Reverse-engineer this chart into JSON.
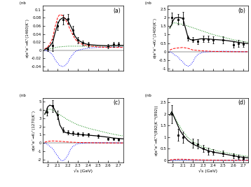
{
  "xlim": [
    1.95,
    2.75
  ],
  "xticks": [
    2.0,
    2.1,
    2.2,
    2.3,
    2.4,
    2.5,
    2.6,
    2.7
  ],
  "xticklabels": [
    "2",
    "2.1",
    "2.2",
    "2.3",
    "2.4",
    "2.5",
    "2.6",
    "2.7"
  ],
  "xlabel": "√s (GeV)",
  "panels": [
    {
      "label": "(a)",
      "ylabel_top": " (nb",
      "ylabel_rot": "σ(e⁺e⁻→K⁺(1460)K⁻)",
      "ylim": [
        -0.05,
        0.11
      ],
      "yticks": [
        -0.04,
        -0.02,
        0.0,
        0.02,
        0.04,
        0.06,
        0.08,
        0.1
      ],
      "yticklabels": [
        "-0.04",
        "-0.02",
        "0",
        "0.02",
        "0.04",
        "0.06",
        "0.08",
        "0.1"
      ],
      "data_x": [
        2.0,
        2.05,
        2.1,
        2.15,
        2.2,
        2.25,
        2.3,
        2.35,
        2.4,
        2.6,
        2.65,
        2.7
      ],
      "data_y": [
        0.003,
        0.012,
        0.06,
        0.075,
        0.077,
        0.05,
        0.025,
        0.018,
        0.015,
        0.01,
        0.015,
        0.015
      ],
      "data_yerr": [
        0.005,
        0.015,
        0.01,
        0.012,
        0.012,
        0.01,
        0.008,
        0.006,
        0.006,
        0.005,
        0.006,
        0.005
      ],
      "black_x": [
        1.97,
        2.0,
        2.02,
        2.05,
        2.07,
        2.1,
        2.12,
        2.15,
        2.17,
        2.2,
        2.22,
        2.25,
        2.27,
        2.3,
        2.35,
        2.4,
        2.5,
        2.6,
        2.65,
        2.7,
        2.75
      ],
      "black_y": [
        0.002,
        0.005,
        0.01,
        0.02,
        0.04,
        0.065,
        0.075,
        0.08,
        0.079,
        0.073,
        0.063,
        0.048,
        0.035,
        0.025,
        0.018,
        0.014,
        0.012,
        0.011,
        0.012,
        0.012,
        0.012
      ],
      "red_x": [
        1.97,
        2.0,
        2.02,
        2.05,
        2.07,
        2.1,
        2.12,
        2.15,
        2.17,
        2.2,
        2.22,
        2.25,
        2.27,
        2.3,
        2.35,
        2.4,
        2.5,
        2.6,
        2.65,
        2.7,
        2.75
      ],
      "red_y": [
        0.003,
        0.008,
        0.015,
        0.03,
        0.055,
        0.082,
        0.088,
        0.085,
        0.078,
        0.065,
        0.052,
        0.038,
        0.028,
        0.02,
        0.014,
        0.011,
        0.008,
        0.007,
        0.007,
        0.007,
        0.007
      ],
      "green_x": [
        1.97,
        2.0,
        2.05,
        2.1,
        2.15,
        2.2,
        2.25,
        2.3,
        2.4,
        2.5,
        2.6,
        2.7,
        2.75
      ],
      "green_y": [
        0.002,
        0.003,
        0.005,
        0.008,
        0.009,
        0.01,
        0.01,
        0.01,
        0.01,
        0.01,
        0.01,
        0.01,
        0.01
      ],
      "blue_x": [
        1.97,
        2.0,
        2.02,
        2.05,
        2.07,
        2.1,
        2.12,
        2.15,
        2.17,
        2.2,
        2.22,
        2.25,
        2.27,
        2.3,
        2.35,
        2.4,
        2.5,
        2.6,
        2.7,
        2.75
      ],
      "blue_y": [
        0.0,
        -0.002,
        -0.005,
        -0.012,
        -0.022,
        -0.032,
        -0.038,
        -0.04,
        -0.038,
        -0.03,
        -0.02,
        -0.01,
        -0.004,
        0.0,
        0.003,
        0.005,
        0.007,
        0.008,
        0.008,
        0.008
      ]
    },
    {
      "label": "(b)",
      "ylabel_top": " (nb",
      "ylabel_rot": "σ(e⁺e⁻→K₁⁺(1400)K⁻)",
      "ylim": [
        -1.1,
        2.7
      ],
      "yticks": [
        -1.0,
        -0.5,
        0.0,
        0.5,
        1.0,
        1.5,
        2.0,
        2.5
      ],
      "yticklabels": [
        "-1",
        "-0.5",
        "0",
        "0.5",
        "1",
        "1.5",
        "2",
        "2.5"
      ],
      "data_x": [
        1.99,
        2.05,
        2.1,
        2.15,
        2.2,
        2.25,
        2.3,
        2.35,
        2.4,
        2.5,
        2.6,
        2.65,
        2.7
      ],
      "data_y": [
        2.0,
        1.9,
        1.95,
        0.8,
        0.7,
        0.6,
        0.75,
        0.75,
        0.7,
        0.7,
        0.4,
        0.5,
        0.45
      ],
      "data_yerr": [
        0.3,
        0.3,
        0.4,
        0.15,
        0.15,
        0.15,
        0.2,
        0.2,
        0.2,
        0.2,
        0.15,
        0.2,
        0.15
      ],
      "black_x": [
        1.97,
        1.99,
        2.0,
        2.02,
        2.05,
        2.07,
        2.1,
        2.12,
        2.15,
        2.17,
        2.2,
        2.22,
        2.25,
        2.27,
        2.3,
        2.35,
        2.4,
        2.5,
        2.6,
        2.65,
        2.7,
        2.75
      ],
      "black_y": [
        1.4,
        1.6,
        1.8,
        1.98,
        2.0,
        2.0,
        1.95,
        1.5,
        0.85,
        0.72,
        0.68,
        0.7,
        0.72,
        0.75,
        0.76,
        0.75,
        0.72,
        0.68,
        0.6,
        0.55,
        0.5,
        0.48
      ],
      "red_x": [
        1.97,
        1.99,
        2.0,
        2.05,
        2.1,
        2.15,
        2.2,
        2.3,
        2.4,
        2.5,
        2.6,
        2.7,
        2.75
      ],
      "red_y": [
        0.1,
        0.15,
        0.18,
        0.22,
        0.25,
        0.2,
        0.1,
        0.05,
        0.02,
        0.01,
        0.0,
        0.0,
        0.0
      ],
      "green_x": [
        1.97,
        1.99,
        2.0,
        2.02,
        2.05,
        2.1,
        2.15,
        2.2,
        2.25,
        2.3,
        2.4,
        2.5,
        2.6,
        2.7,
        2.75
      ],
      "green_y": [
        1.35,
        1.55,
        1.65,
        1.7,
        1.65,
        1.6,
        1.5,
        1.4,
        1.3,
        1.2,
        1.0,
        0.85,
        0.7,
        0.6,
        0.55
      ],
      "blue_x": [
        1.97,
        1.99,
        2.0,
        2.02,
        2.05,
        2.07,
        2.1,
        2.12,
        2.15,
        2.17,
        2.2,
        2.22,
        2.25,
        2.3,
        2.4,
        2.5,
        2.6,
        2.7,
        2.75
      ],
      "blue_y": [
        0.0,
        -0.05,
        -0.1,
        -0.2,
        -0.3,
        -0.45,
        -0.6,
        -0.75,
        -0.85,
        -0.8,
        -0.6,
        -0.35,
        -0.15,
        -0.02,
        0.02,
        0.03,
        0.02,
        0.0,
        0.0
      ]
    },
    {
      "label": "(c)",
      "ylabel_top": " (nb",
      "ylabel_rot": "σ(e⁺e⁻→K₁⁺(1270)K⁻)",
      "ylim": [
        -2.4,
        5.5
      ],
      "yticks": [
        -2,
        -1,
        0,
        1,
        2,
        3,
        4,
        5
      ],
      "yticklabels": [
        "-2",
        "-1",
        "0",
        "1",
        "2",
        "3",
        "4",
        "5"
      ],
      "data_x": [
        1.99,
        2.05,
        2.1,
        2.15,
        2.2,
        2.25,
        2.3,
        2.35,
        2.4,
        2.5,
        2.6,
        2.65,
        2.7
      ],
      "data_y": [
        3.8,
        4.5,
        3.4,
        1.55,
        1.3,
        1.2,
        1.1,
        1.05,
        1.0,
        0.85,
        0.5,
        0.5,
        0.4
      ],
      "data_yerr": [
        0.5,
        0.7,
        0.5,
        0.3,
        0.25,
        0.25,
        0.2,
        0.2,
        0.2,
        0.2,
        0.15,
        0.15,
        0.15
      ],
      "black_x": [
        1.97,
        1.99,
        2.0,
        2.02,
        2.05,
        2.07,
        2.1,
        2.12,
        2.15,
        2.17,
        2.2,
        2.25,
        2.3,
        2.35,
        2.4,
        2.5,
        2.6,
        2.65,
        2.7,
        2.75
      ],
      "black_y": [
        3.5,
        4.0,
        4.4,
        4.6,
        4.5,
        4.0,
        3.3,
        2.2,
        1.55,
        1.3,
        1.2,
        1.1,
        1.05,
        1.0,
        0.95,
        0.85,
        0.7,
        0.6,
        0.55,
        0.5
      ],
      "red_x": [
        1.97,
        1.99,
        2.0,
        2.05,
        2.1,
        2.15,
        2.2,
        2.3,
        2.4,
        2.5,
        2.6,
        2.7,
        2.75
      ],
      "red_y": [
        0.1,
        0.15,
        0.2,
        0.25,
        0.22,
        0.18,
        0.12,
        0.06,
        0.03,
        0.01,
        0.0,
        0.0,
        0.0
      ],
      "green_x": [
        1.97,
        1.99,
        2.0,
        2.02,
        2.05,
        2.1,
        2.15,
        2.2,
        2.25,
        2.3,
        2.4,
        2.5,
        2.6,
        2.7,
        2.75
      ],
      "green_y": [
        3.5,
        3.8,
        4.0,
        4.1,
        4.0,
        3.6,
        3.2,
        2.8,
        2.5,
        2.2,
        1.8,
        1.5,
        1.2,
        0.95,
        0.85
      ],
      "blue_x": [
        1.97,
        1.99,
        2.0,
        2.02,
        2.05,
        2.07,
        2.1,
        2.12,
        2.15,
        2.17,
        2.2,
        2.22,
        2.25,
        2.3,
        2.4,
        2.5,
        2.6,
        2.7,
        2.75
      ],
      "blue_y": [
        0.0,
        -0.1,
        -0.2,
        -0.4,
        -0.7,
        -1.1,
        -1.6,
        -2.0,
        -2.2,
        -2.0,
        -1.5,
        -0.9,
        -0.4,
        -0.08,
        0.02,
        0.04,
        0.03,
        0.01,
        0.0
      ]
    },
    {
      "label": "(d)",
      "ylabel_top": " (nb",
      "ylabel_rot": "σ(e⁺e⁻→K⁺*(892)K⁻*(892))",
      "ylim": [
        -0.1,
        2.7
      ],
      "yticks": [
        0.0,
        0.5,
        1.0,
        1.5,
        2.0,
        2.5
      ],
      "yticklabels": [
        "0",
        "0.5",
        "1",
        "1.5",
        "2",
        "2.5"
      ],
      "data_x": [
        1.99,
        2.05,
        2.1,
        2.2,
        2.25,
        2.3,
        2.35,
        2.4,
        2.5,
        2.6,
        2.65,
        2.7
      ],
      "data_y": [
        2.0,
        1.1,
        1.0,
        0.75,
        0.7,
        0.5,
        0.4,
        0.35,
        0.3,
        0.2,
        0.15,
        0.1
      ],
      "data_yerr": [
        0.4,
        0.25,
        0.25,
        0.2,
        0.2,
        0.15,
        0.15,
        0.12,
        0.12,
        0.1,
        0.1,
        0.08
      ],
      "black_x": [
        1.97,
        1.99,
        2.0,
        2.02,
        2.05,
        2.07,
        2.1,
        2.15,
        2.2,
        2.25,
        2.3,
        2.35,
        2.4,
        2.5,
        2.6,
        2.65,
        2.7,
        2.75
      ],
      "black_y": [
        1.95,
        2.1,
        2.0,
        1.8,
        1.5,
        1.3,
        1.1,
        0.85,
        0.7,
        0.6,
        0.5,
        0.42,
        0.36,
        0.28,
        0.2,
        0.16,
        0.13,
        0.11
      ],
      "red_x": [
        1.97,
        1.99,
        2.0,
        2.05,
        2.1,
        2.15,
        2.2,
        2.3,
        2.4,
        2.5,
        2.6,
        2.7,
        2.75
      ],
      "red_y": [
        0.02,
        0.03,
        0.04,
        0.05,
        0.05,
        0.04,
        0.03,
        0.02,
        0.01,
        0.005,
        0.003,
        0.002,
        0.002
      ],
      "green_x": [
        1.97,
        1.99,
        2.0,
        2.02,
        2.05,
        2.1,
        2.15,
        2.2,
        2.25,
        2.3,
        2.4,
        2.5,
        2.6,
        2.7,
        2.75
      ],
      "green_y": [
        1.95,
        2.1,
        2.0,
        1.85,
        1.6,
        1.25,
        0.98,
        0.8,
        0.68,
        0.58,
        0.45,
        0.35,
        0.27,
        0.2,
        0.17
      ],
      "blue_x": [
        1.97,
        1.99,
        2.0,
        2.05,
        2.1,
        2.15,
        2.2,
        2.3,
        2.4,
        2.5,
        2.6,
        2.7,
        2.75
      ],
      "blue_y": [
        0.0,
        0.0,
        0.0,
        0.01,
        0.01,
        0.01,
        0.01,
        0.005,
        0.003,
        0.002,
        0.001,
        0.001,
        0.001
      ]
    }
  ]
}
